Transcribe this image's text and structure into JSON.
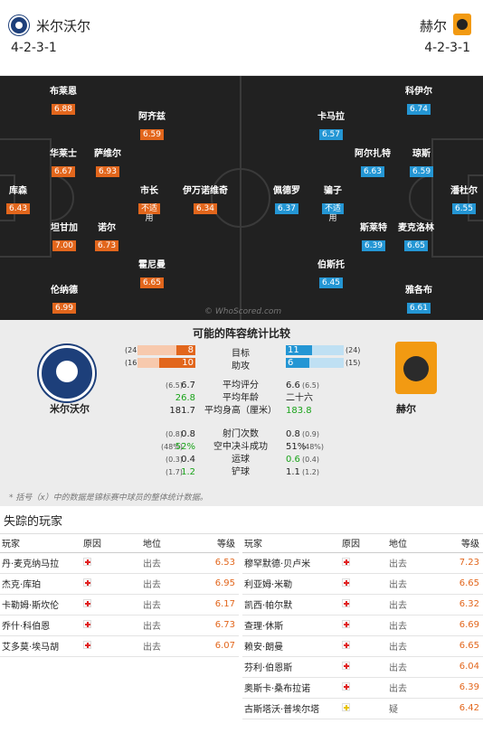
{
  "home": {
    "name": "米尔沃尔",
    "formation": "4-2-3-1"
  },
  "away": {
    "name": "赫尔",
    "formation": "4-2-3-1"
  },
  "pitch": {
    "watermark": "© WhoScored.com",
    "home_players": [
      {
        "name": "布莱恩",
        "rating": "6.88"
      },
      {
        "name": "阿齐兹",
        "rating": "6.59"
      },
      {
        "name": "华莱士",
        "rating": "6.67"
      },
      {
        "name": "萨维尔",
        "rating": "6.93"
      },
      {
        "name": "库森",
        "rating": "6.43"
      },
      {
        "name": "市长",
        "rating": "不适",
        "extra": "用"
      },
      {
        "name": "伊万诺维奇",
        "rating": "6.34"
      },
      {
        "name": "坦甘加",
        "rating": "7.00"
      },
      {
        "name": "诺尔",
        "rating": "6.73"
      },
      {
        "name": "霍尼曼",
        "rating": "6.65"
      },
      {
        "name": "伦纳德",
        "rating": "6.99"
      }
    ],
    "away_players": [
      {
        "name": "科伊尔",
        "rating": "6.74"
      },
      {
        "name": "卡马拉",
        "rating": "6.57"
      },
      {
        "name": "阿尔扎特",
        "rating": "6.63"
      },
      {
        "name": "琼斯",
        "rating": "6.59"
      },
      {
        "name": "佩德罗",
        "rating": "6.37"
      },
      {
        "name": "骗子",
        "rating": "不适",
        "extra": "用"
      },
      {
        "name": "潘杜尔",
        "rating": "6.55"
      },
      {
        "name": "斯莱特",
        "rating": "6.39"
      },
      {
        "name": "麦克洛林",
        "rating": "6.65"
      },
      {
        "name": "伯斯托",
        "rating": "6.45"
      },
      {
        "name": "雅各布",
        "rating": "6.61"
      }
    ]
  },
  "stats": {
    "title": "可能的阵容统计比较",
    "home_name": "米尔沃尔",
    "away_name": "赫尔",
    "bars": [
      {
        "label": "目标",
        "home_total": "(24)",
        "home": "8",
        "home_frac": 0.333,
        "away": "11",
        "away_total": "(24)",
        "away_frac": 0.458
      },
      {
        "label": "助攻",
        "home_total": "(16)",
        "home": "10",
        "home_frac": 0.625,
        "away": "6",
        "away_total": "(15)",
        "away_frac": 0.4
      }
    ],
    "rows": [
      {
        "label": "平均评分",
        "home_paren": "(6.5)",
        "home": "6.7",
        "home_green": false,
        "away": "6.6",
        "away_paren": "(6.5)",
        "away_green": false
      },
      {
        "label": "平均年龄",
        "home_paren": "",
        "home": "26.8",
        "home_green": true,
        "away": "二十六",
        "away_paren": "",
        "away_green": false
      },
      {
        "label": "平均身高（厘米）",
        "home_paren": "",
        "home": "181.7",
        "home_green": false,
        "away": "183.8",
        "away_paren": "",
        "away_green": true
      },
      {
        "label": "射门次数",
        "home_paren": "(0.8)",
        "home": "0.8",
        "home_green": false,
        "away": "0.8",
        "away_paren": "(0.9)",
        "away_green": false
      },
      {
        "label": "空中决斗成功",
        "home_paren": "(48%)",
        "home": "52%",
        "home_green": true,
        "away": "51%",
        "away_paren": "(48%)",
        "away_green": false
      },
      {
        "label": "运球",
        "home_paren": "(0.3)",
        "home": "0.4",
        "home_green": false,
        "away": "0.6",
        "away_paren": "(0.4)",
        "away_green": true
      },
      {
        "label": "铲球",
        "home_paren": "(1.7)",
        "home": "1.2",
        "home_green": true,
        "away": "1.1",
        "away_paren": "(1.2)",
        "away_green": false
      }
    ],
    "note": "* 括号（x）中的数据是锦标赛中球员的整体统计数据。"
  },
  "missing": {
    "title": "失踪的玩家",
    "headers": {
      "player": "玩家",
      "reason": "原因",
      "status": "地位",
      "rating": "等级"
    },
    "home": [
      {
        "player": "丹·麦克纳马拉",
        "status": "出去",
        "rating": "6.53"
      },
      {
        "player": "杰克·库珀",
        "status": "出去",
        "rating": "6.95"
      },
      {
        "player": "卡勒姆·斯坎伦",
        "status": "出去",
        "rating": "6.17"
      },
      {
        "player": "乔什·科伯恩",
        "status": "出去",
        "rating": "6.73"
      },
      {
        "player": "艾多莫·埃马胡",
        "status": "出去",
        "rating": "6.07"
      }
    ],
    "away": [
      {
        "player": "穆罕默德·贝卢米",
        "status": "出去",
        "rating": "7.23",
        "doubt": false
      },
      {
        "player": "利亚姆·米勒",
        "status": "出去",
        "rating": "6.65",
        "doubt": false
      },
      {
        "player": "凯西·帕尔默",
        "status": "出去",
        "rating": "6.32",
        "doubt": false
      },
      {
        "player": "查理·休斯",
        "status": "出去",
        "rating": "6.69",
        "doubt": false
      },
      {
        "player": "赖安·朗曼",
        "status": "出去",
        "rating": "6.65",
        "doubt": false
      },
      {
        "player": "芬利·伯恩斯",
        "status": "出去",
        "rating": "6.04",
        "doubt": false
      },
      {
        "player": "奥斯卡·桑布拉诺",
        "status": "出去",
        "rating": "6.39",
        "doubt": false
      },
      {
        "player": "古斯塔沃·普埃尔塔",
        "status": "疑",
        "rating": "6.42",
        "doubt": true
      }
    ]
  }
}
